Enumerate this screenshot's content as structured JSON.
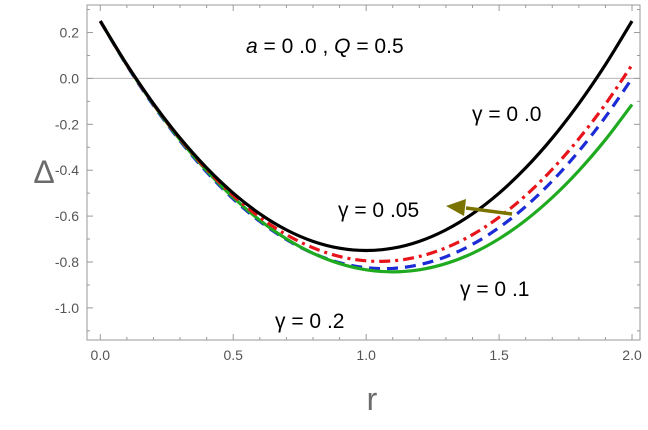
{
  "chart_data": {
    "type": "line",
    "title": "",
    "xlabel": "r",
    "ylabel": "Δ",
    "xlim": [
      -0.05,
      2.03
    ],
    "ylim": [
      -1.14,
      0.32
    ],
    "x_ticks": [
      0.0,
      0.5,
      1.0,
      1.5,
      2.0
    ],
    "x_tick_labels": [
      "0.0",
      "0.5",
      "1.0",
      "1.5",
      "2.0"
    ],
    "y_ticks": [
      0.2,
      0.0,
      -0.2,
      -0.4,
      -0.6,
      -0.8,
      -1.0
    ],
    "y_tick_labels": [
      "0.2",
      "0.0",
      "-0.2",
      "-0.4",
      "-0.6",
      "-0.8",
      "-1.0"
    ],
    "grid": false,
    "reference_line_y": 0,
    "annotation": "a = 0 .0 ,  Q = 0.5",
    "series": [
      {
        "name": "γ = 0 .0",
        "color": "#000000",
        "style": "solid",
        "x": [
          0.0,
          0.1,
          0.2,
          0.3,
          0.4,
          0.5,
          0.6,
          0.7,
          0.8,
          0.9,
          1.0,
          1.1,
          1.2,
          1.3,
          1.4,
          1.5,
          1.6,
          1.7,
          1.8,
          1.9,
          2.0
        ],
        "y": [
          0.25,
          0.06,
          -0.11,
          -0.26,
          -0.39,
          -0.5,
          -0.59,
          -0.66,
          -0.71,
          -0.74,
          -0.75,
          -0.74,
          -0.71,
          -0.66,
          -0.59,
          -0.5,
          -0.39,
          -0.26,
          -0.11,
          0.06,
          0.25
        ]
      },
      {
        "name": "γ = 0 .05",
        "color": "#e8141b",
        "style": "dashdot",
        "x": [
          0.0,
          0.1,
          0.2,
          0.3,
          0.4,
          0.5,
          0.6,
          0.7,
          0.8,
          0.9,
          1.0,
          1.1,
          1.2,
          1.3,
          1.4,
          1.5,
          1.6,
          1.7,
          1.8,
          1.9,
          2.0
        ],
        "y": [
          0.25,
          0.059,
          -0.112,
          -0.263,
          -0.396,
          -0.51,
          -0.605,
          -0.681,
          -0.738,
          -0.776,
          -0.795,
          -0.795,
          -0.776,
          -0.738,
          -0.681,
          -0.605,
          -0.51,
          -0.396,
          -0.263,
          -0.112,
          0.059
        ]
      },
      {
        "name": "γ = 0 .1",
        "color": "#1faa1f",
        "style": "solid",
        "x": [
          0.0,
          0.1,
          0.2,
          0.3,
          0.4,
          0.5,
          0.6,
          0.7,
          0.8,
          0.9,
          1.0,
          1.1,
          1.2,
          1.3,
          1.4,
          1.5,
          1.6,
          1.7,
          1.8,
          1.9,
          2.0
        ],
        "y": [
          0.25,
          0.058,
          -0.114,
          -0.267,
          -0.402,
          -0.519,
          -0.618,
          -0.699,
          -0.762,
          -0.807,
          -0.834,
          -0.843,
          -0.834,
          -0.807,
          -0.762,
          -0.699,
          -0.618,
          -0.519,
          -0.402,
          -0.267,
          -0.114
        ]
      },
      {
        "name": "γ = 0 .2",
        "color": "#1b2bd6",
        "style": "dashed",
        "x": [
          0.0,
          0.1,
          0.2,
          0.3,
          0.4,
          0.5,
          0.6,
          0.7,
          0.8,
          0.9,
          1.0,
          1.1,
          1.2,
          1.3,
          1.4,
          1.5,
          1.6,
          1.7,
          1.8,
          1.9,
          2.0
        ],
        "y": [
          0.25,
          0.056,
          -0.118,
          -0.272,
          -0.408,
          -0.525,
          -0.623,
          -0.702,
          -0.762,
          -0.803,
          -0.825,
          -0.828,
          -0.812,
          -0.777,
          -0.723,
          -0.65,
          -0.558,
          -0.447,
          -0.317,
          -0.168,
          0.0
        ]
      }
    ]
  },
  "labels": {
    "gamma_00": "γ = 0 .0",
    "gamma_005": "γ = 0 .05",
    "gamma_01": "γ = 0 .1",
    "gamma_02": "γ = 0 .2"
  },
  "arrow_color": "#7a7300"
}
